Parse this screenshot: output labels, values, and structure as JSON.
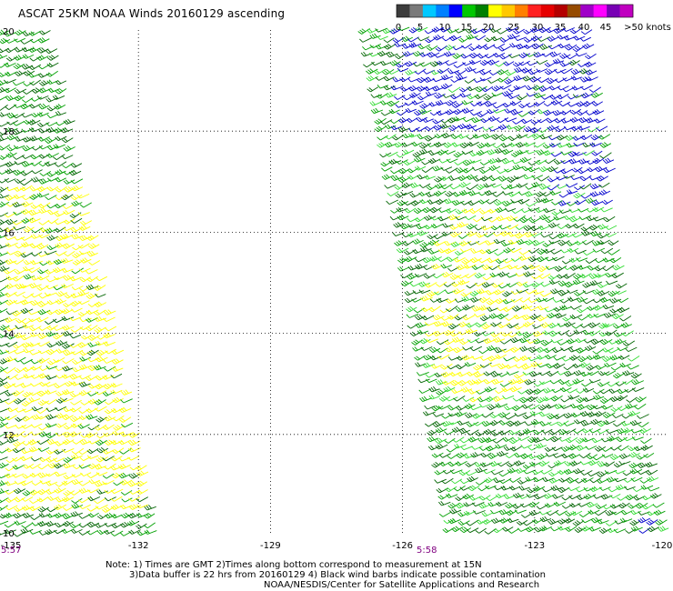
{
  "title": "ASCAT 25KM NOAA Winds 20160129 ascending",
  "legend": {
    "labels": [
      "0",
      "5",
      "10",
      "15",
      "20",
      "25",
      "30",
      "35",
      "40",
      "45",
      ">50 knots"
    ],
    "colors": [
      "#3c3c3c",
      "#7a7a7a",
      "#00c8ff",
      "#0080ff",
      "#0000ff",
      "#00c800",
      "#008000",
      "#ffff00",
      "#ffc800",
      "#ff7f00",
      "#ff2020",
      "#e60000",
      "#b40000",
      "#964b00",
      "#a000c8",
      "#ff00ff",
      "#7800b4",
      "#c000c0"
    ]
  },
  "axes": {
    "x_ticks": [
      "-135",
      "-132",
      "-129",
      "-126",
      "-123",
      "-120"
    ],
    "y_ticks": [
      "20",
      "18",
      "16",
      "14",
      "12",
      "10"
    ],
    "x_range": [
      -135,
      -120
    ],
    "y_range": [
      10,
      20
    ]
  },
  "times": {
    "left": "5:57",
    "right": "5:58"
  },
  "notes": {
    "line1": "Note: 1) Times are GMT 2)Times along bottom correspond to measurement at 15N",
    "line2": "3)Data buffer is 22 hrs from 20160129 4) Black wind barbs indicate possible contamination",
    "credit": "NOAA/NESDIS/Center for Satellite Applications and Research"
  },
  "swaths": [
    {
      "name": "west-swath",
      "colors": [
        "#008000",
        "#00a000",
        "#ffff00"
      ]
    },
    {
      "name": "east-swath",
      "colors": [
        "#008000",
        "#00c800",
        "#0000ff",
        "#ffff00"
      ]
    }
  ]
}
